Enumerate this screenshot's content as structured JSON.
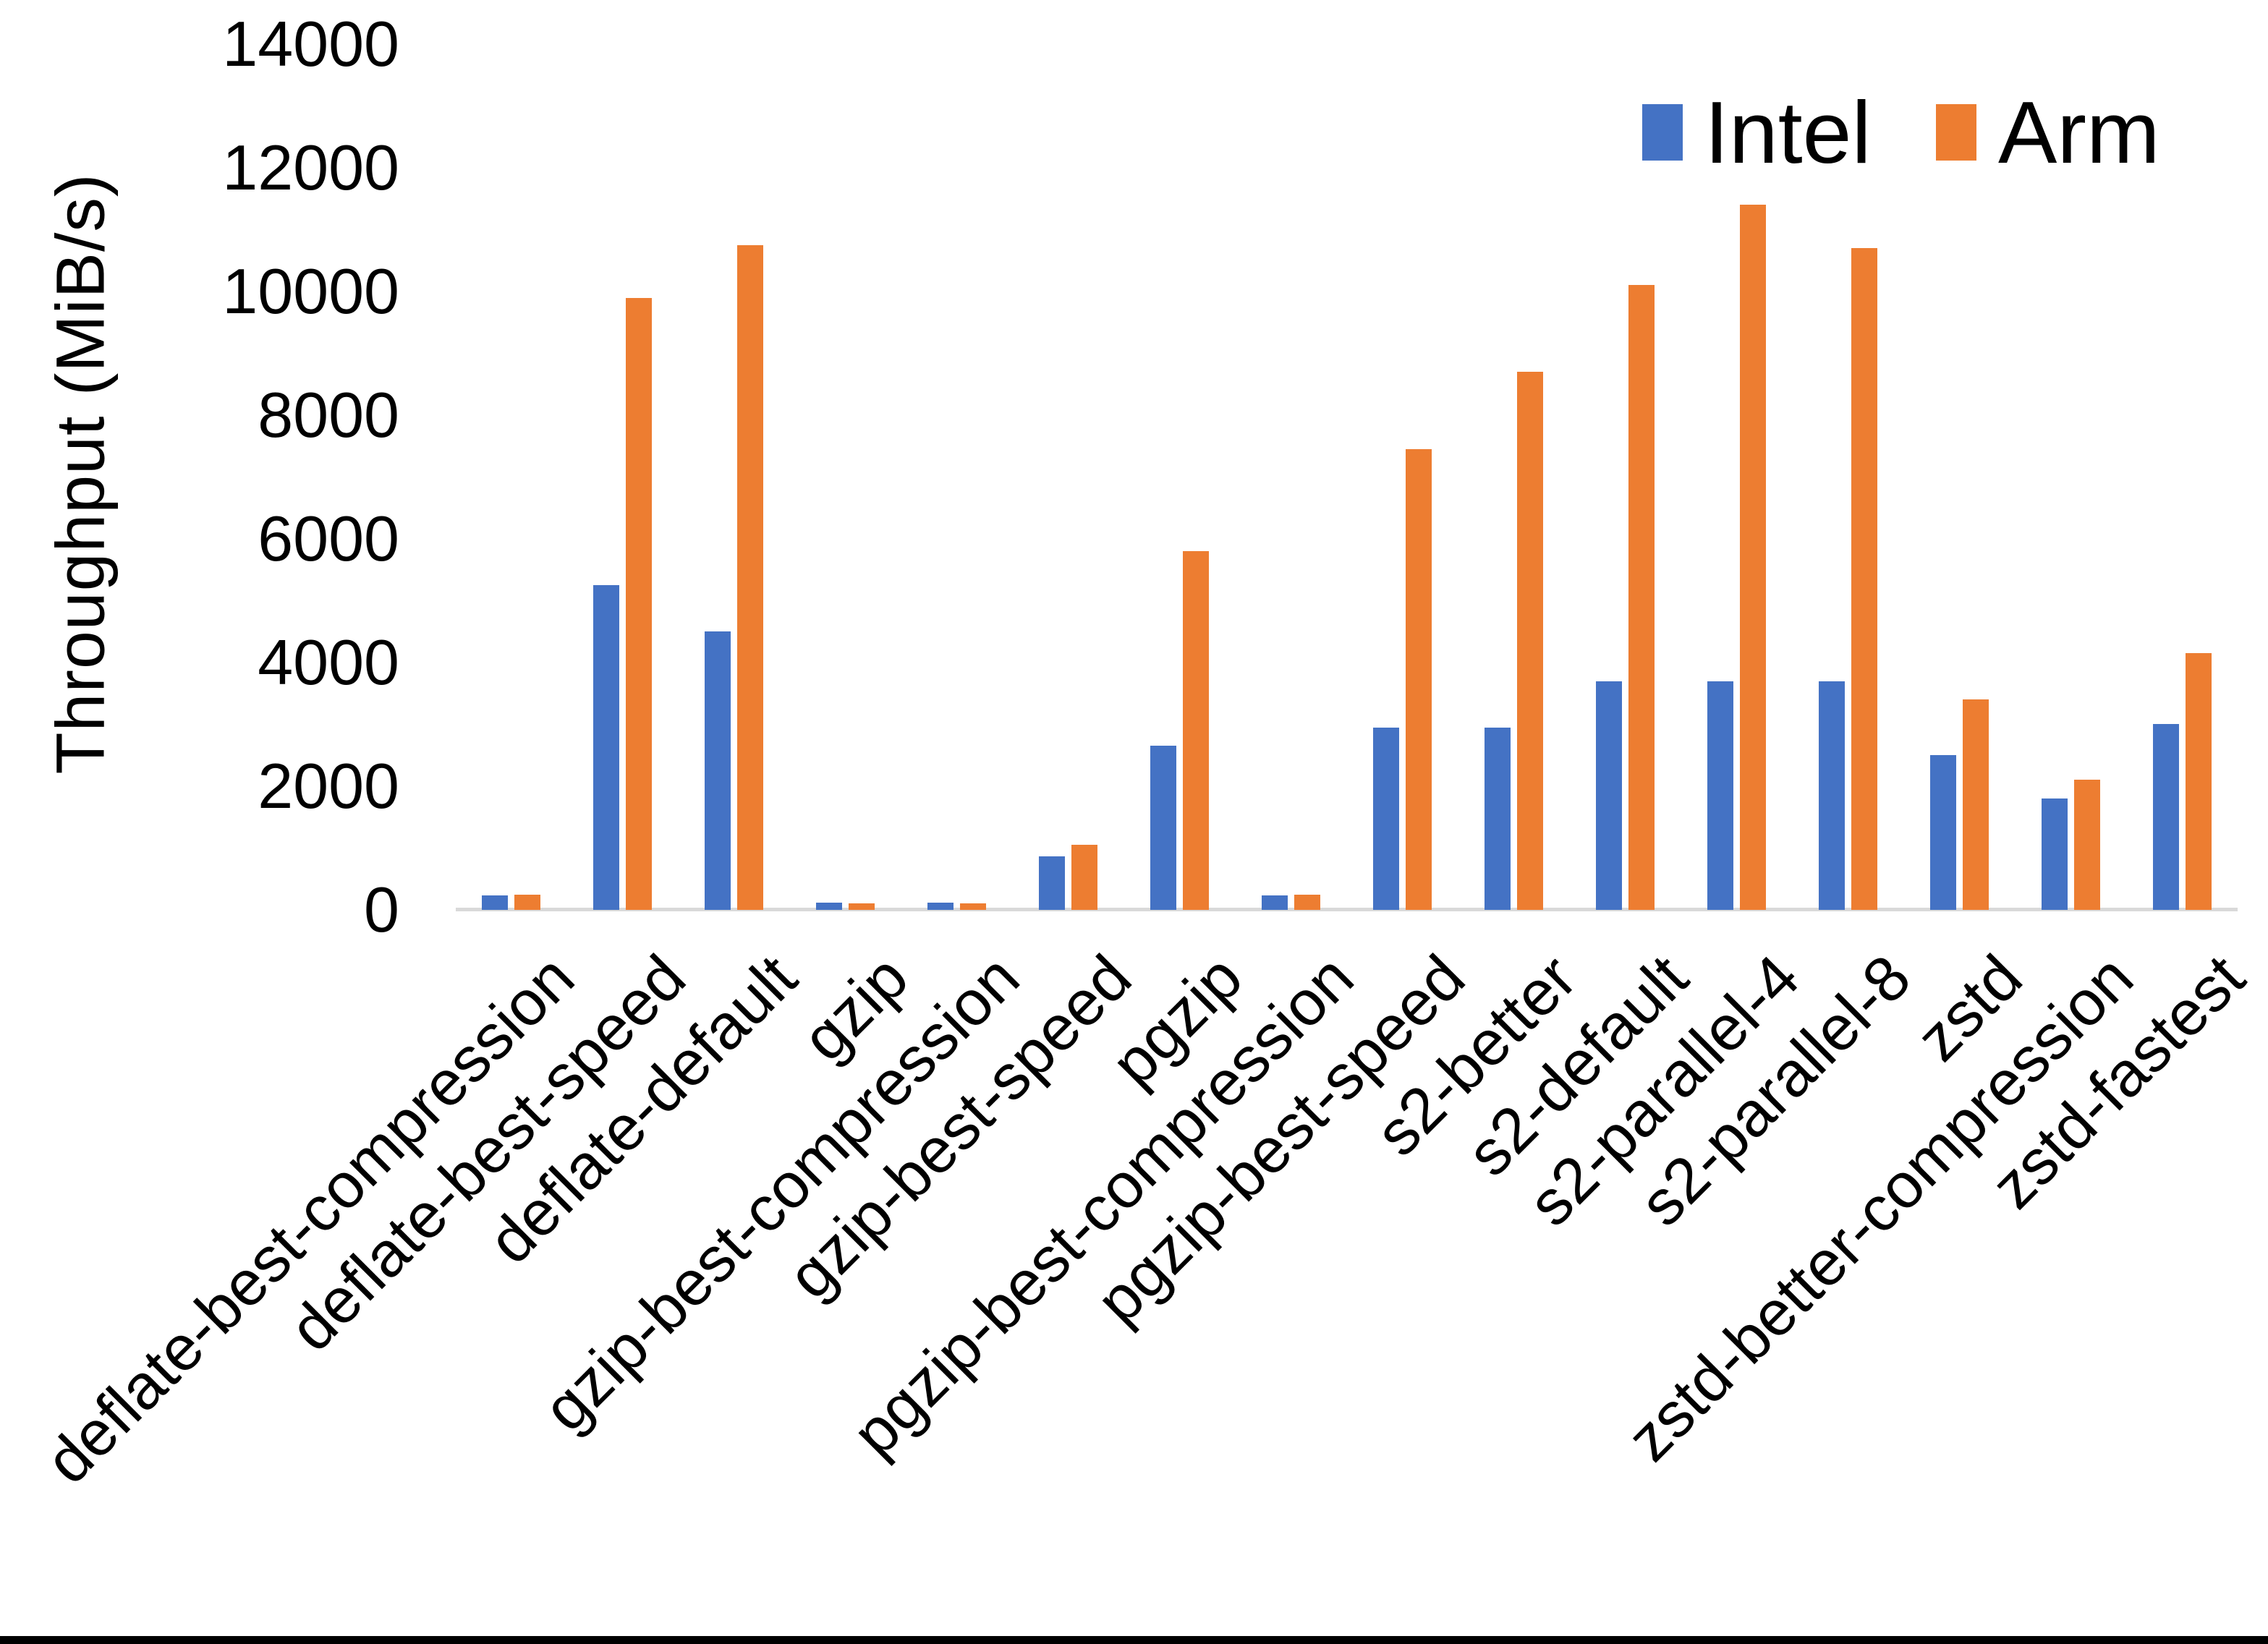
{
  "figure": {
    "background": "#ffffff",
    "bottom_border_color": "#000000"
  },
  "legend": {
    "position": "top-right",
    "items": [
      {
        "label": "Intel",
        "color": "#4472C4"
      },
      {
        "label": "Arm",
        "color": "#ED7D31"
      }
    ]
  },
  "chart_data": {
    "type": "bar",
    "title": "",
    "xlabel": "",
    "ylabel": "Throughput (MiB/s)",
    "ylim": [
      0,
      14000
    ],
    "ytick_interval": 2000,
    "ytick_labels": [
      "0",
      "2000",
      "4000",
      "6000",
      "8000",
      "10000",
      "12000",
      "14000"
    ],
    "grid": false,
    "legend_position": "top-right",
    "axis_line_color": "#d9d9d9",
    "text_color": "#000000",
    "categories": [
      "deflate-best-compression",
      "deflate-best-speed",
      "deflate-default",
      "gzip",
      "gzip-best-compression",
      "gzip-best-speed",
      "pgzip",
      "pgzip-best-compression",
      "pgzip-best-speed",
      "s2-better",
      "s2-default",
      "s2-parallel-4",
      "s2-parallel-8",
      "zstd",
      "zstd-better-compression",
      "zstd-fastest"
    ],
    "series": [
      {
        "name": "Intel",
        "color": "#4472C4",
        "values": [
          230,
          5250,
          4500,
          120,
          120,
          870,
          2650,
          230,
          2950,
          2950,
          3700,
          3700,
          3700,
          2500,
          1800,
          3000
        ]
      },
      {
        "name": "Arm",
        "color": "#ED7D31",
        "values": [
          240,
          9900,
          10750,
          105,
          110,
          1050,
          5800,
          250,
          7450,
          8700,
          10100,
          11400,
          10700,
          3400,
          2100,
          4150
        ]
      }
    ]
  }
}
